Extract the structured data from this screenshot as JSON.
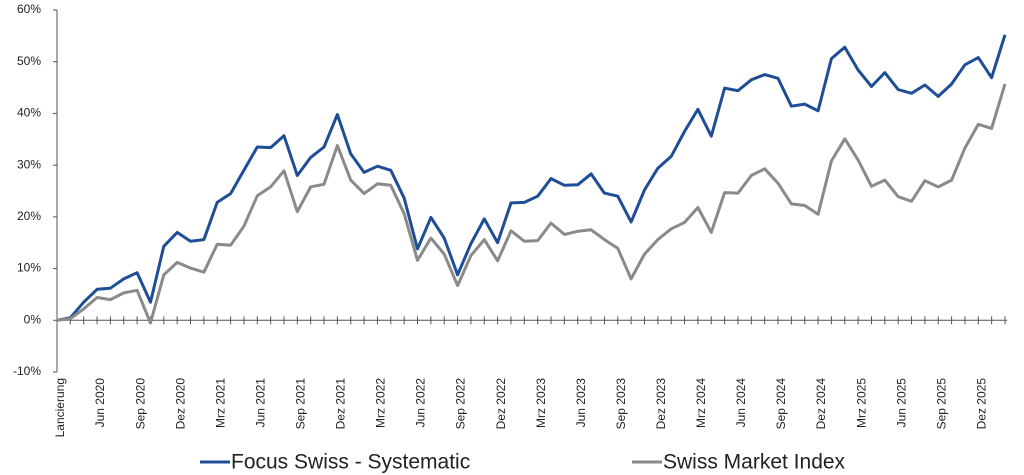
{
  "chart_data": {
    "type": "line",
    "categories": [
      "Lancierung",
      null,
      null,
      "Jun 2020",
      null,
      null,
      "Sep 2020",
      null,
      null,
      "Dez 2020",
      null,
      null,
      "Mrz 2021",
      null,
      null,
      "Jun 2021",
      null,
      null,
      "Sep 2021",
      null,
      null,
      "Dez 2021",
      null,
      null,
      "Mrz 2022",
      null,
      null,
      "Jun 2022",
      null,
      null,
      "Sep 2022",
      null,
      null,
      "Dez 2022",
      null,
      null,
      "Mrz 2023",
      null,
      null,
      "Jun 2023",
      null,
      null,
      "Sep 2023",
      null,
      null,
      "Dez 2023",
      null,
      null,
      "Mrz 2024",
      null,
      null,
      "Jun 2024",
      null,
      null,
      "Sep 2024",
      null,
      null,
      "Dez 2024",
      null,
      null,
      "Mrz 2025",
      null,
      null,
      "Jun 2025",
      null,
      null,
      "Sep 2025",
      null,
      null,
      "Dez 2025",
      null,
      null
    ],
    "series": [
      {
        "name": "Focus Swiss - Systematic",
        "color": "#1f4e96",
        "values": [
          0,
          0.5,
          3.5,
          6,
          6.2,
          8,
          9.2,
          3.5,
          14.3,
          17,
          15.3,
          15.6,
          22.8,
          24.5,
          29,
          33.5,
          33.4,
          35.7,
          28,
          31.5,
          33.5,
          39.8,
          32.2,
          28.6,
          29.8,
          29,
          23.6,
          13.8,
          19.9,
          15.9,
          8.8,
          14.8,
          19.6,
          15,
          22.7,
          22.8,
          24,
          27.4,
          26.1,
          26.2,
          28.3,
          24.6,
          24,
          19,
          25.2,
          29.4,
          31.7,
          36.5,
          40.8,
          35.6,
          44.9,
          44.4,
          46.5,
          47.5,
          46.8,
          41.4,
          41.8,
          40.5,
          50.6,
          52.8,
          48.4,
          45.2,
          47.9,
          44.6,
          43.9,
          45.5,
          43.3,
          45.7,
          49.4,
          50.8,
          46.9,
          55.2
        ]
      },
      {
        "name": "Swiss Market Index",
        "color": "#8a8a8a",
        "values": [
          0,
          0.3,
          2.2,
          4.4,
          4,
          5.3,
          5.8,
          -0.5,
          8.8,
          11.2,
          10.1,
          9.3,
          14.7,
          14.5,
          18.2,
          24.1,
          25.8,
          28.9,
          21,
          25.8,
          26.3,
          33.8,
          27.1,
          24.5,
          26.4,
          26.1,
          20.6,
          11.6,
          15.9,
          12.8,
          6.7,
          12.5,
          15.6,
          11.5,
          17.3,
          15.3,
          15.4,
          18.8,
          16.6,
          17.2,
          17.5,
          15.6,
          13.9,
          8,
          12.8,
          15.6,
          17.7,
          18.9,
          21.8,
          17,
          24.7,
          24.6,
          28,
          29.3,
          26.5,
          22.5,
          22.2,
          20.5,
          30.8,
          35.1,
          31,
          25.9,
          27.1,
          23.9,
          23,
          27,
          25.8,
          27.1,
          33.3,
          37.9,
          37.1,
          45.7
        ]
      }
    ],
    "ylim": [
      -10,
      60
    ],
    "yticks": [
      {
        "value": -10,
        "label": "-10%"
      },
      {
        "value": 0,
        "label": "0%"
      },
      {
        "value": 10,
        "label": "10%"
      },
      {
        "value": 20,
        "label": "20%"
      },
      {
        "value": 30,
        "label": "30%"
      },
      {
        "value": 40,
        "label": "40%"
      },
      {
        "value": 50,
        "label": "50%"
      },
      {
        "value": 60,
        "label": "60%"
      }
    ],
    "grid": false,
    "legend": "bottom"
  }
}
